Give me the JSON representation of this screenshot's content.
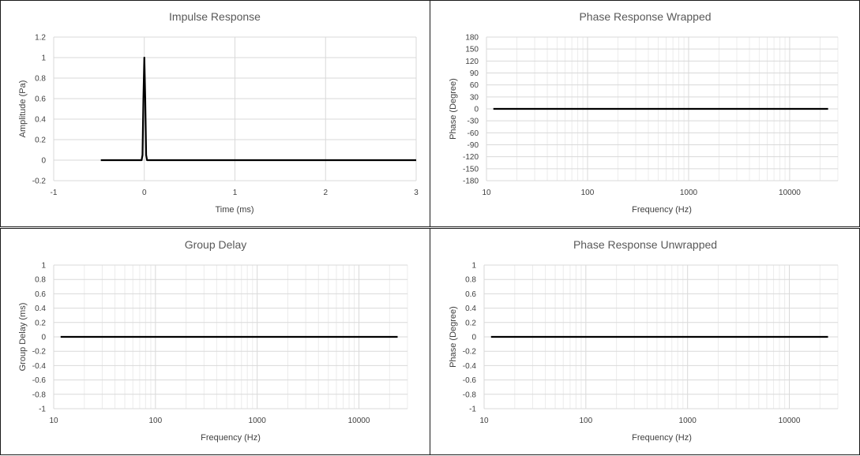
{
  "chart_data": [
    {
      "type": "line",
      "title": "Impulse Response",
      "xlabel": "Time  (ms)",
      "ylabel": "Amplitude (Pa)",
      "x_scale": "linear",
      "xlim": [
        -1,
        3
      ],
      "ylim": [
        -0.2,
        1.2
      ],
      "x_ticks": [
        -1,
        0,
        1,
        2,
        3
      ],
      "y_ticks": [
        -0.2,
        0,
        0.2,
        0.4,
        0.6,
        0.8,
        1,
        1.2
      ],
      "x_tick_labels": [
        "-1",
        "0",
        "1",
        "2",
        "3"
      ],
      "y_tick_labels": [
        "-0.2",
        "0",
        "0.2",
        "0.4",
        "0.6",
        "0.8",
        "1",
        "1.2"
      ],
      "grid": true,
      "series": [
        {
          "color": "#000000",
          "x": [
            -0.48,
            -0.03,
            -0.02,
            -0.01,
            0,
            0.01,
            0.02,
            0.03,
            3
          ],
          "y": [
            0,
            0,
            0.05,
            0.6,
            1,
            0.6,
            0.05,
            0,
            0
          ]
        }
      ]
    },
    {
      "type": "line",
      "title": "Phase Response Wrapped",
      "xlabel": "Frequency  (Hz)",
      "ylabel": "Phase (Degree)",
      "x_scale": "log",
      "xlim": [
        10,
        30000
      ],
      "ylim": [
        -180,
        180
      ],
      "x_ticks": [
        10,
        100,
        1000,
        10000
      ],
      "y_ticks": [
        -180,
        -150,
        -120,
        -90,
        -60,
        -30,
        0,
        30,
        60,
        90,
        120,
        150,
        180
      ],
      "x_tick_labels": [
        "10",
        "100",
        "1000",
        "10000"
      ],
      "y_tick_labels": [
        "-180",
        "-150",
        "-120",
        "-90",
        "-60",
        "-30",
        "0",
        "30",
        "60",
        "90",
        "120",
        "150",
        "180"
      ],
      "grid": true,
      "series": [
        {
          "color": "#000000",
          "x": [
            11.7,
            24000
          ],
          "y": [
            0,
            0
          ]
        }
      ]
    },
    {
      "type": "line",
      "title": "Group Delay",
      "xlabel": "Frequency  (Hz)",
      "ylabel": "Group Delay (ms)",
      "x_scale": "log",
      "xlim": [
        10,
        30000
      ],
      "ylim": [
        -1,
        1
      ],
      "x_ticks": [
        10,
        100,
        1000,
        10000
      ],
      "y_ticks": [
        -1,
        -0.8,
        -0.6,
        -0.4,
        -0.2,
        0,
        0.2,
        0.4,
        0.6,
        0.8,
        1
      ],
      "x_tick_labels": [
        "10",
        "100",
        "1000",
        "10000"
      ],
      "y_tick_labels": [
        "-1",
        "-0.8",
        "-0.6",
        "-0.4",
        "-0.2",
        "0",
        "0.2",
        "0.4",
        "0.6",
        "0.8",
        "1"
      ],
      "grid": true,
      "series": [
        {
          "color": "#000000",
          "x": [
            11.7,
            24000
          ],
          "y": [
            0,
            0
          ]
        }
      ]
    },
    {
      "type": "line",
      "title": "Phase Response Unwrapped",
      "xlabel": "Frequency  (Hz)",
      "ylabel": "Phase (Degree)",
      "x_scale": "log",
      "xlim": [
        10,
        30000
      ],
      "ylim": [
        -1,
        1
      ],
      "x_ticks": [
        10,
        100,
        1000,
        10000
      ],
      "y_ticks": [
        -1,
        -0.8,
        -0.6,
        -0.4,
        -0.2,
        0,
        0.2,
        0.4,
        0.6,
        0.8,
        1
      ],
      "x_tick_labels": [
        "10",
        "100",
        "1000",
        "10000"
      ],
      "y_tick_labels": [
        "-1",
        "-0.8",
        "-0.6",
        "-0.4",
        "-0.2",
        "0",
        "0.2",
        "0.4",
        "0.6",
        "0.8",
        "1"
      ],
      "grid": true,
      "series": [
        {
          "color": "#000000",
          "x": [
            11.7,
            24000
          ],
          "y": [
            0,
            0
          ]
        }
      ]
    }
  ]
}
